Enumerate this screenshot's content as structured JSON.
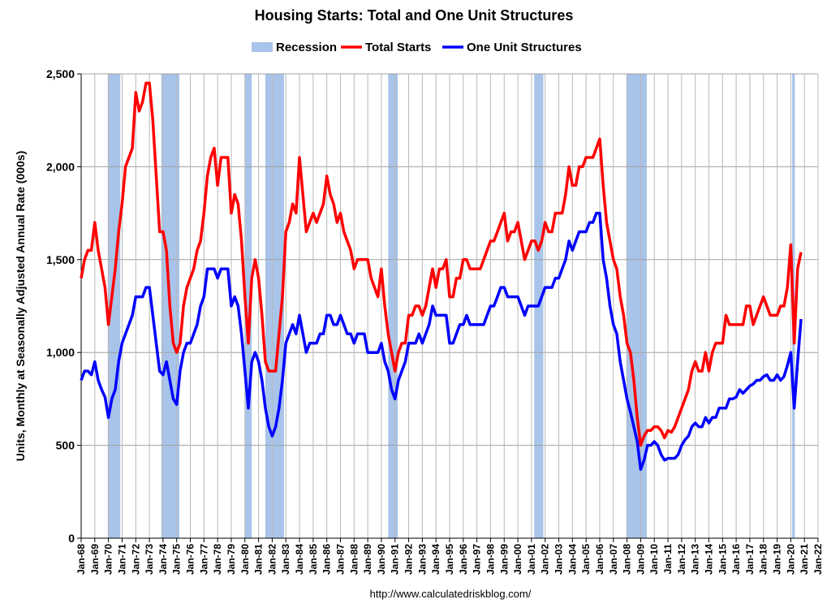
{
  "chart_data": {
    "type": "line",
    "title": "Housing Starts: Total and One Unit Structures",
    "y_label": "Units, Monthly at Seasonally Adjusted Annual Rate (000s)",
    "source": "http://www.calculatedriskblog.com/",
    "grid": true,
    "legend": "top",
    "xlim": [
      1968,
      2022
    ],
    "ylim": [
      0,
      2500
    ],
    "yticks": [
      0,
      500,
      {
        "value": 1000,
        "label": "1,000"
      },
      {
        "value": 1500,
        "label": "1,500"
      },
      {
        "value": 2000,
        "label": "2,000"
      },
      {
        "value": 2500,
        "label": "2,500"
      }
    ],
    "xticks": [
      {
        "value": 1968,
        "label": "Jan-68"
      },
      {
        "value": 1969,
        "label": "Jan-69"
      },
      {
        "value": 1970,
        "label": "Jan-70"
      },
      {
        "value": 1971,
        "label": "Jan-71"
      },
      {
        "value": 1972,
        "label": "Jan-72"
      },
      {
        "value": 1973,
        "label": "Jan-73"
      },
      {
        "value": 1974,
        "label": "Jan-74"
      },
      {
        "value": 1975,
        "label": "Jan-75"
      },
      {
        "value": 1976,
        "label": "Jan-76"
      },
      {
        "value": 1977,
        "label": "Jan-77"
      },
      {
        "value": 1978,
        "label": "Jan-78"
      },
      {
        "value": 1979,
        "label": "Jan-79"
      },
      {
        "value": 1980,
        "label": "Jan-80"
      },
      {
        "value": 1981,
        "label": "Jan-81"
      },
      {
        "value": 1982,
        "label": "Jan-82"
      },
      {
        "value": 1983,
        "label": "Jan-83"
      },
      {
        "value": 1984,
        "label": "Jan-84"
      },
      {
        "value": 1985,
        "label": "Jan-85"
      },
      {
        "value": 1986,
        "label": "Jan-86"
      },
      {
        "value": 1987,
        "label": "Jan-87"
      },
      {
        "value": 1988,
        "label": "Jan-88"
      },
      {
        "value": 1989,
        "label": "Jan-89"
      },
      {
        "value": 1990,
        "label": "Jan-90"
      },
      {
        "value": 1991,
        "label": "Jan-91"
      },
      {
        "value": 1992,
        "label": "Jan-92"
      },
      {
        "value": 1993,
        "label": "Jan-93"
      },
      {
        "value": 1994,
        "label": "Jan-94"
      },
      {
        "value": 1995,
        "label": "Jan-95"
      },
      {
        "value": 1996,
        "label": "Jan-96"
      },
      {
        "value": 1997,
        "label": "Jan-97"
      },
      {
        "value": 1998,
        "label": "Jan-98"
      },
      {
        "value": 1999,
        "label": "Jan-99"
      },
      {
        "value": 2000,
        "label": "Jan-00"
      },
      {
        "value": 2001,
        "label": "Jan-01"
      },
      {
        "value": 2002,
        "label": "Jan-02"
      },
      {
        "value": 2003,
        "label": "Jan-03"
      },
      {
        "value": 2004,
        "label": "Jan-04"
      },
      {
        "value": 2005,
        "label": "Jan-05"
      },
      {
        "value": 2006,
        "label": "Jan-06"
      },
      {
        "value": 2007,
        "label": "Jan-07"
      },
      {
        "value": 2008,
        "label": "Jan-08"
      },
      {
        "value": 2009,
        "label": "Jan-09"
      },
      {
        "value": 2010,
        "label": "Jan-10"
      },
      {
        "value": 2011,
        "label": "Jan-11"
      },
      {
        "value": 2012,
        "label": "Jan-12"
      },
      {
        "value": 2013,
        "label": "Jan-13"
      },
      {
        "value": 2014,
        "label": "Jan-14"
      },
      {
        "value": 2015,
        "label": "Jan-15"
      },
      {
        "value": 2016,
        "label": "Jan-16"
      },
      {
        "value": 2017,
        "label": "Jan-17"
      },
      {
        "value": 2018,
        "label": "Jan-18"
      },
      {
        "value": 2019,
        "label": "Jan-19"
      },
      {
        "value": 2020,
        "label": "Jan-20"
      },
      {
        "value": 2021,
        "label": "Jan-21"
      },
      {
        "value": 2022,
        "label": "Jan-22"
      }
    ],
    "recession": {
      "name": "Recession",
      "color": "#a9c4ea",
      "periods": [
        [
          1969.95,
          1970.87
        ],
        [
          1973.87,
          1975.2
        ],
        [
          1980.0,
          1980.5
        ],
        [
          1981.5,
          1982.87
        ],
        [
          1990.5,
          1991.2
        ],
        [
          2001.2,
          2001.87
        ],
        [
          2007.95,
          2009.45
        ],
        [
          2020.1,
          2020.3
        ]
      ]
    },
    "x": [
      1968,
      1968.25,
      1968.5,
      1968.75,
      1969,
      1969.25,
      1969.5,
      1969.75,
      1970,
      1970.25,
      1970.5,
      1970.75,
      1971,
      1971.25,
      1971.5,
      1971.75,
      1972,
      1972.25,
      1972.5,
      1972.75,
      1973,
      1973.25,
      1973.5,
      1973.75,
      1974,
      1974.25,
      1974.5,
      1974.75,
      1975,
      1975.25,
      1975.5,
      1975.75,
      1976,
      1976.25,
      1976.5,
      1976.75,
      1977,
      1977.25,
      1977.5,
      1977.75,
      1978,
      1978.25,
      1978.5,
      1978.75,
      1979,
      1979.25,
      1979.5,
      1979.75,
      1980,
      1980.25,
      1980.5,
      1980.75,
      1981,
      1981.25,
      1981.5,
      1981.75,
      1982,
      1982.25,
      1982.5,
      1982.75,
      1983,
      1983.25,
      1983.5,
      1983.75,
      1984,
      1984.25,
      1984.5,
      1984.75,
      1985,
      1985.25,
      1985.5,
      1985.75,
      1986,
      1986.25,
      1986.5,
      1986.75,
      1987,
      1987.25,
      1987.5,
      1987.75,
      1988,
      1988.25,
      1988.5,
      1988.75,
      1989,
      1989.25,
      1989.5,
      1989.75,
      1990,
      1990.25,
      1990.5,
      1990.75,
      1991,
      1991.25,
      1991.5,
      1991.75,
      1992,
      1992.25,
      1992.5,
      1992.75,
      1993,
      1993.25,
      1993.5,
      1993.75,
      1994,
      1994.25,
      1994.5,
      1994.75,
      1995,
      1995.25,
      1995.5,
      1995.75,
      1996,
      1996.25,
      1996.5,
      1996.75,
      1997,
      1997.25,
      1997.5,
      1997.75,
      1998,
      1998.25,
      1998.5,
      1998.75,
      1999,
      1999.25,
      1999.5,
      1999.75,
      2000,
      2000.25,
      2000.5,
      2000.75,
      2001,
      2001.25,
      2001.5,
      2001.75,
      2002,
      2002.25,
      2002.5,
      2002.75,
      2003,
      2003.25,
      2003.5,
      2003.75,
      2004,
      2004.25,
      2004.5,
      2004.75,
      2005,
      2005.25,
      2005.5,
      2005.75,
      2006,
      2006.25,
      2006.5,
      2006.75,
      2007,
      2007.25,
      2007.5,
      2007.75,
      2008,
      2008.25,
      2008.5,
      2008.75,
      2009,
      2009.25,
      2009.5,
      2009.75,
      2010,
      2010.25,
      2010.5,
      2010.75,
      2011,
      2011.25,
      2011.5,
      2011.75,
      2012,
      2012.25,
      2012.5,
      2012.75,
      2013,
      2013.25,
      2013.5,
      2013.75,
      2014,
      2014.25,
      2014.5,
      2014.75,
      2015,
      2015.25,
      2015.5,
      2015.75,
      2016,
      2016.25,
      2016.5,
      2016.75,
      2017,
      2017.25,
      2017.5,
      2017.75,
      2018,
      2018.25,
      2018.5,
      2018.75,
      2019,
      2019.25,
      2019.5,
      2019.75,
      2020,
      2020.25,
      2020.5,
      2020.75
    ],
    "series": [
      {
        "name": "Total Starts",
        "color": "#ff0000",
        "values": [
          1400,
          1500,
          1550,
          1550,
          1700,
          1550,
          1450,
          1350,
          1150,
          1300,
          1450,
          1650,
          1800,
          2000,
          2050,
          2100,
          2400,
          2300,
          2350,
          2450,
          2450,
          2250,
          1950,
          1650,
          1650,
          1550,
          1250,
          1050,
          1000,
          1050,
          1250,
          1350,
          1400,
          1450,
          1550,
          1600,
          1750,
          1950,
          2050,
          2100,
          1900,
          2050,
          2050,
          2050,
          1750,
          1850,
          1800,
          1600,
          1300,
          1050,
          1400,
          1500,
          1400,
          1200,
          950,
          900,
          900,
          900,
          1100,
          1300,
          1650,
          1700,
          1800,
          1750,
          2050,
          1850,
          1650,
          1700,
          1750,
          1700,
          1750,
          1800,
          1950,
          1850,
          1800,
          1700,
          1750,
          1650,
          1600,
          1550,
          1450,
          1500,
          1500,
          1500,
          1500,
          1400,
          1350,
          1300,
          1450,
          1250,
          1100,
          1000,
          900,
          1000,
          1050,
          1050,
          1200,
          1200,
          1250,
          1250,
          1200,
          1250,
          1350,
          1450,
          1350,
          1450,
          1450,
          1500,
          1300,
          1300,
          1400,
          1400,
          1500,
          1500,
          1450,
          1450,
          1450,
          1450,
          1500,
          1550,
          1600,
          1600,
          1650,
          1700,
          1750,
          1600,
          1650,
          1650,
          1700,
          1600,
          1500,
          1550,
          1600,
          1600,
          1550,
          1600,
          1700,
          1650,
          1650,
          1750,
          1750,
          1750,
          1850,
          2000,
          1900,
          1900,
          2000,
          2000,
          2050,
          2050,
          2050,
          2100,
          2150,
          1900,
          1700,
          1600,
          1500,
          1450,
          1300,
          1200,
          1050,
          1000,
          850,
          650,
          500,
          550,
          580,
          580,
          600,
          600,
          580,
          540,
          580,
          570,
          600,
          650,
          700,
          750,
          800,
          900,
          950,
          900,
          900,
          1000,
          900,
          1000,
          1050,
          1050,
          1050,
          1200,
          1150,
          1150,
          1150,
          1150,
          1150,
          1250,
          1250,
          1150,
          1200,
          1250,
          1300,
          1250,
          1200,
          1200,
          1200,
          1250,
          1250,
          1350,
          1580,
          1050,
          1450,
          1540
        ]
      },
      {
        "name": "One Unit Structures",
        "color": "#0000ff",
        "values": [
          850,
          900,
          900,
          880,
          950,
          850,
          800,
          760,
          650,
          750,
          800,
          950,
          1050,
          1100,
          1150,
          1200,
          1300,
          1300,
          1300,
          1350,
          1350,
          1200,
          1050,
          900,
          880,
          950,
          850,
          750,
          720,
          900,
          1000,
          1050,
          1050,
          1100,
          1150,
          1250,
          1300,
          1450,
          1450,
          1450,
          1400,
          1450,
          1450,
          1450,
          1250,
          1300,
          1250,
          1100,
          900,
          700,
          950,
          1000,
          950,
          850,
          700,
          600,
          550,
          600,
          700,
          850,
          1050,
          1100,
          1150,
          1100,
          1200,
          1100,
          1000,
          1050,
          1050,
          1050,
          1100,
          1100,
          1200,
          1200,
          1150,
          1150,
          1200,
          1150,
          1100,
          1100,
          1050,
          1100,
          1100,
          1100,
          1000,
          1000,
          1000,
          1000,
          1050,
          950,
          900,
          800,
          750,
          850,
          900,
          950,
          1050,
          1050,
          1050,
          1100,
          1050,
          1100,
          1150,
          1250,
          1200,
          1200,
          1200,
          1200,
          1050,
          1050,
          1100,
          1150,
          1150,
          1200,
          1150,
          1150,
          1150,
          1150,
          1150,
          1200,
          1250,
          1250,
          1300,
          1350,
          1350,
          1300,
          1300,
          1300,
          1300,
          1250,
          1200,
          1250,
          1250,
          1250,
          1250,
          1300,
          1350,
          1350,
          1350,
          1400,
          1400,
          1450,
          1500,
          1600,
          1550,
          1600,
          1650,
          1650,
          1650,
          1700,
          1700,
          1750,
          1750,
          1500,
          1400,
          1250,
          1150,
          1100,
          950,
          850,
          750,
          680,
          600,
          520,
          370,
          420,
          500,
          500,
          520,
          500,
          450,
          420,
          430,
          430,
          430,
          450,
          500,
          530,
          550,
          600,
          620,
          600,
          600,
          650,
          620,
          650,
          650,
          700,
          700,
          700,
          750,
          750,
          760,
          800,
          780,
          800,
          820,
          830,
          850,
          850,
          870,
          880,
          850,
          850,
          880,
          850,
          870,
          930,
          1000,
          700,
          950,
          1180
        ]
      }
    ]
  }
}
